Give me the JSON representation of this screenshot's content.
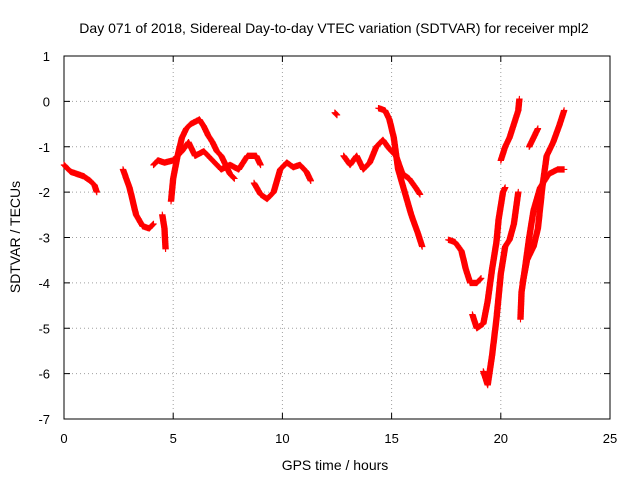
{
  "chart_data": {
    "type": "scatter",
    "title": "Day 071 of 2018, Sidereal Day-to-day VTEC variation (SDTVAR) for receiver mpl2",
    "xlabel": "GPS time / hours",
    "ylabel": "SDTVAR / TECUs",
    "xlim": [
      0,
      25
    ],
    "ylim": [
      -7,
      1
    ],
    "x_ticks": [
      0,
      5,
      10,
      15,
      20,
      25
    ],
    "y_ticks": [
      1,
      0,
      -1,
      -2,
      -3,
      -4,
      -5,
      -6,
      -7
    ],
    "x_tick_labels": [
      "0",
      "5",
      "10",
      "15",
      "20",
      "25"
    ],
    "y_tick_labels": [
      "1",
      "0",
      "-1",
      "-2",
      "-3",
      "-4",
      "-5",
      "-6",
      "-7"
    ],
    "grid": true,
    "marker": "+",
    "series": [
      {
        "name": "SDTVAR",
        "color": "#ff0000",
        "segments": [
          [
            [
              0.0,
              -1.4
            ],
            [
              0.3,
              -1.55
            ],
            [
              0.6,
              -1.6
            ],
            [
              0.9,
              -1.65
            ],
            [
              1.2,
              -1.75
            ],
            [
              1.4,
              -1.85
            ],
            [
              1.5,
              -2.0
            ]
          ],
          [
            [
              2.7,
              -1.5
            ],
            [
              3.0,
              -1.9
            ],
            [
              3.3,
              -2.5
            ],
            [
              3.6,
              -2.75
            ],
            [
              3.9,
              -2.8
            ],
            [
              4.1,
              -2.7
            ]
          ],
          [
            [
              4.1,
              -1.4
            ],
            [
              4.3,
              -1.3
            ],
            [
              4.6,
              -1.35
            ],
            [
              5.0,
              -1.3
            ],
            [
              5.4,
              -1.1
            ],
            [
              5.7,
              -0.9
            ],
            [
              6.0,
              -1.2
            ],
            [
              6.4,
              -1.1
            ],
            [
              6.8,
              -1.3
            ],
            [
              7.2,
              -1.5
            ],
            [
              7.6,
              -1.4
            ],
            [
              8.0,
              -1.5
            ],
            [
              8.4,
              -1.2
            ],
            [
              8.8,
              -1.2
            ],
            [
              9.0,
              -1.4
            ]
          ],
          [
            [
              4.5,
              -2.5
            ],
            [
              4.6,
              -2.8
            ],
            [
              4.65,
              -3.25
            ]
          ],
          [
            [
              4.9,
              -2.2
            ],
            [
              5.0,
              -1.7
            ],
            [
              5.2,
              -1.2
            ],
            [
              5.4,
              -0.8
            ],
            [
              5.6,
              -0.6
            ],
            [
              5.8,
              -0.5
            ],
            [
              6.0,
              -0.45
            ],
            [
              6.2,
              -0.4
            ],
            [
              6.4,
              -0.55
            ],
            [
              6.6,
              -0.75
            ],
            [
              6.8,
              -0.9
            ],
            [
              7.0,
              -1.1
            ],
            [
              7.2,
              -1.2
            ],
            [
              7.4,
              -1.4
            ],
            [
              7.6,
              -1.6
            ],
            [
              7.8,
              -1.7
            ]
          ],
          [
            [
              8.7,
              -1.8
            ],
            [
              9.0,
              -2.05
            ],
            [
              9.3,
              -2.15
            ],
            [
              9.6,
              -2.0
            ],
            [
              9.9,
              -1.5
            ],
            [
              10.2,
              -1.35
            ],
            [
              10.5,
              -1.45
            ],
            [
              10.8,
              -1.4
            ],
            [
              11.1,
              -1.55
            ],
            [
              11.3,
              -1.75
            ]
          ],
          [
            [
              12.4,
              -0.25
            ],
            [
              12.5,
              -0.3
            ]
          ],
          [
            [
              12.8,
              -1.2
            ],
            [
              13.1,
              -1.4
            ],
            [
              13.4,
              -1.2
            ],
            [
              13.7,
              -1.5
            ],
            [
              14.0,
              -1.35
            ],
            [
              14.3,
              -1.0
            ],
            [
              14.6,
              -0.85
            ],
            [
              14.9,
              -1.05
            ],
            [
              15.2,
              -1.2
            ],
            [
              15.5,
              -1.6
            ],
            [
              15.8,
              -1.7
            ],
            [
              16.1,
              -1.9
            ],
            [
              16.3,
              -2.05
            ]
          ],
          [
            [
              14.4,
              -0.15
            ],
            [
              14.7,
              -0.2
            ],
            [
              14.9,
              -0.4
            ],
            [
              15.1,
              -0.8
            ],
            [
              15.3,
              -1.5
            ],
            [
              15.6,
              -2.0
            ],
            [
              15.9,
              -2.5
            ],
            [
              16.2,
              -2.9
            ],
            [
              16.4,
              -3.2
            ]
          ],
          [
            [
              17.6,
              -3.05
            ],
            [
              17.9,
              -3.1
            ],
            [
              18.2,
              -3.3
            ],
            [
              18.4,
              -3.7
            ],
            [
              18.6,
              -4.0
            ],
            [
              18.9,
              -4.0
            ],
            [
              19.1,
              -3.9
            ]
          ],
          [
            [
              18.7,
              -4.7
            ],
            [
              18.9,
              -5.0
            ],
            [
              19.2,
              -4.9
            ],
            [
              19.4,
              -4.4
            ],
            [
              19.6,
              -3.7
            ],
            [
              19.8,
              -3.1
            ],
            [
              19.9,
              -2.6
            ],
            [
              20.1,
              -2.0
            ],
            [
              20.2,
              -1.9
            ]
          ],
          [
            [
              19.2,
              -5.95
            ],
            [
              19.4,
              -6.25
            ],
            [
              19.6,
              -5.6
            ],
            [
              19.8,
              -4.8
            ],
            [
              20.0,
              -3.8
            ],
            [
              20.2,
              -3.2
            ],
            [
              20.4,
              -3.05
            ],
            [
              20.6,
              -2.7
            ],
            [
              20.8,
              -2.0
            ]
          ],
          [
            [
              20.0,
              -1.3
            ],
            [
              20.2,
              -1.0
            ],
            [
              20.4,
              -0.8
            ],
            [
              20.6,
              -0.5
            ],
            [
              20.8,
              -0.2
            ],
            [
              20.85,
              0.05
            ]
          ],
          [
            [
              20.9,
              -4.8
            ],
            [
              20.95,
              -4.2
            ],
            [
              21.1,
              -3.7
            ],
            [
              21.3,
              -3.0
            ],
            [
              21.5,
              -2.4
            ],
            [
              21.8,
              -1.9
            ],
            [
              22.2,
              -1.6
            ],
            [
              22.6,
              -1.5
            ],
            [
              22.9,
              -1.5
            ]
          ],
          [
            [
              21.0,
              -4.0
            ],
            [
              21.2,
              -3.5
            ],
            [
              21.5,
              -3.2
            ],
            [
              21.7,
              -2.8
            ],
            [
              21.9,
              -1.9
            ],
            [
              22.1,
              -1.2
            ],
            [
              22.4,
              -0.9
            ],
            [
              22.7,
              -0.5
            ],
            [
              22.9,
              -0.2
            ]
          ],
          [
            [
              21.3,
              -1.0
            ],
            [
              21.5,
              -0.8
            ],
            [
              21.7,
              -0.6
            ]
          ]
        ]
      }
    ]
  }
}
